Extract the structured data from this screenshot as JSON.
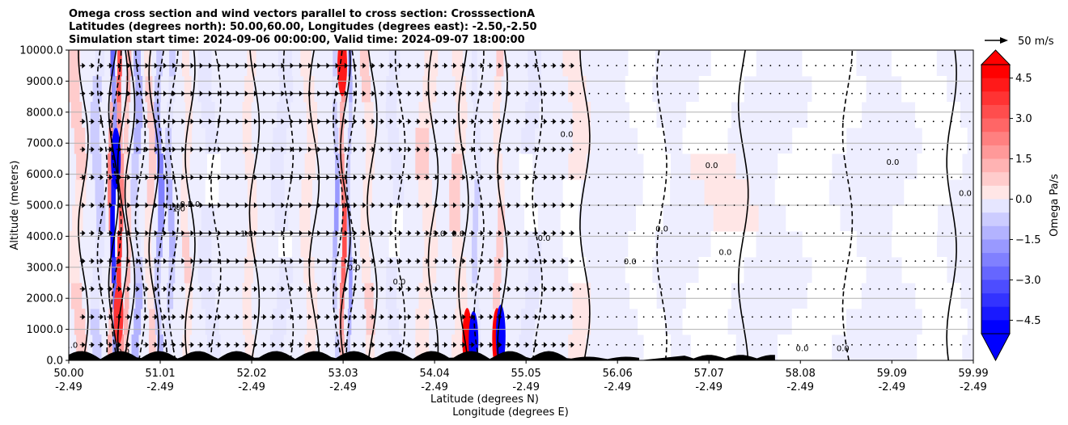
{
  "chart_data": {
    "type": "heatmap",
    "title_lines": [
      "Omega cross section and wind vectors parallel to cross section: CrosssectionA",
      "Latitudes (degrees north): 50.00,60.00, Longitudes (degrees east): -2.50,-2.50",
      "Simulation start time: 2024-09-06 00:00:00, Valid time: 2024-09-07 18:00:00"
    ],
    "ylabel": "Altitude (meters)",
    "xlabel": "Latitude (degrees N)",
    "xlabel2": "Longitude (degrees E)",
    "ylim": [
      0,
      10000
    ],
    "xlim": [
      50.0,
      59.99
    ],
    "y_ticks": [
      0,
      1000,
      2000,
      3000,
      4000,
      5000,
      6000,
      7000,
      8000,
      9000,
      10000
    ],
    "y_tick_labels": [
      "0.0",
      "1000.0",
      "2000.0",
      "3000.0",
      "4000.0",
      "5000.0",
      "6000.0",
      "7000.0",
      "8000.0",
      "9000.0",
      "10000.0"
    ],
    "x_ticks": [
      {
        "lat": 50.0,
        "lat_label": "50.00",
        "lon_label": "-2.49"
      },
      {
        "lat": 51.01,
        "lat_label": "51.01",
        "lon_label": "-2.49"
      },
      {
        "lat": 52.02,
        "lat_label": "52.02",
        "lon_label": "-2.49"
      },
      {
        "lat": 53.03,
        "lat_label": "53.03",
        "lon_label": "-2.49"
      },
      {
        "lat": 54.04,
        "lat_label": "54.04",
        "lon_label": "-2.49"
      },
      {
        "lat": 55.05,
        "lat_label": "55.05",
        "lon_label": "-2.49"
      },
      {
        "lat": 56.06,
        "lat_label": "56.06",
        "lon_label": "-2.49"
      },
      {
        "lat": 57.07,
        "lat_label": "57.07",
        "lon_label": "-2.49"
      },
      {
        "lat": 58.08,
        "lat_label": "58.08",
        "lon_label": "-2.49"
      },
      {
        "lat": 59.09,
        "lat_label": "59.09",
        "lon_label": "-2.49"
      },
      {
        "lat": 59.99,
        "lat_label": "59.99",
        "lon_label": "-2.49"
      }
    ],
    "grid": "horizontal",
    "colorbar": {
      "label": "Omega Pa/s",
      "vmin": -5.0,
      "vmax": 5.0,
      "levels": 20,
      "ticks": [
        4.5,
        3.0,
        1.5,
        0.0,
        -1.5,
        -3.0,
        -4.5
      ],
      "tick_labels": [
        "4.5",
        "3.0",
        "1.5",
        "0.0",
        "−1.5",
        "−3.0",
        "−4.5"
      ],
      "colormap": "bwr",
      "extend": "both"
    },
    "quiver_key": {
      "label": "50 m/s",
      "speed": 50
    },
    "contour_labels": [
      {
        "lat": 50.03,
        "alt": 400,
        "text": "1.0"
      },
      {
        "lat": 50.6,
        "alt": 200,
        "text": "0.0"
      },
      {
        "lat": 51.15,
        "alt": 4850,
        "text": "-1.0"
      },
      {
        "lat": 51.2,
        "alt": 4800,
        "text": "-1.0"
      },
      {
        "lat": 51.3,
        "alt": 4950,
        "text": "0.0"
      },
      {
        "lat": 51.38,
        "alt": 4950,
        "text": "1.0"
      },
      {
        "lat": 51.95,
        "alt": 4000,
        "text": "-1.0"
      },
      {
        "lat": 53.15,
        "alt": 2900,
        "text": "0.0"
      },
      {
        "lat": 53.65,
        "alt": 2450,
        "text": "0.0"
      },
      {
        "lat": 54.07,
        "alt": 4000,
        "text": "-1.0"
      },
      {
        "lat": 54.3,
        "alt": 4000,
        "text": "0.0"
      },
      {
        "lat": 55.25,
        "alt": 3850,
        "text": "0.0"
      },
      {
        "lat": 55.5,
        "alt": 7200,
        "text": "0.0"
      },
      {
        "lat": 56.2,
        "alt": 3100,
        "text": "0.0"
      },
      {
        "lat": 56.55,
        "alt": 4150,
        "text": "0.0"
      },
      {
        "lat": 57.1,
        "alt": 6200,
        "text": "0.0"
      },
      {
        "lat": 57.25,
        "alt": 3400,
        "text": "0.0"
      },
      {
        "lat": 58.1,
        "alt": 300,
        "text": "0.0"
      },
      {
        "lat": 58.55,
        "alt": 300,
        "text": "0.0"
      },
      {
        "lat": 59.1,
        "alt": 6300,
        "text": "0.0"
      },
      {
        "lat": 59.9,
        "alt": 5300,
        "text": "0.0"
      }
    ],
    "omega_bands": [
      {
        "lat": 50.1,
        "width": 0.12,
        "value": 1.2
      },
      {
        "lat": 50.32,
        "width": 0.1,
        "value": -1.2
      },
      {
        "lat": 50.47,
        "width": 0.05,
        "value": 2.5
      },
      {
        "lat": 50.5,
        "width": 0.05,
        "value": -5.0
      },
      {
        "lat": 50.57,
        "width": 0.05,
        "value": 4.0
      },
      {
        "lat": 50.65,
        "width": 0.05,
        "value": 1.5
      },
      {
        "lat": 50.75,
        "width": 0.08,
        "value": -1.6
      },
      {
        "lat": 50.9,
        "width": 0.08,
        "value": 1.2
      },
      {
        "lat": 51.0,
        "width": 0.07,
        "value": -2.5
      },
      {
        "lat": 51.12,
        "width": 0.07,
        "value": -1.5
      },
      {
        "lat": 51.3,
        "width": 0.08,
        "value": 0.8
      },
      {
        "lat": 51.55,
        "width": 0.15,
        "value": -0.5
      },
      {
        "lat": 52.0,
        "width": 0.1,
        "value": 0.7
      },
      {
        "lat": 52.35,
        "width": 0.15,
        "value": -0.6
      },
      {
        "lat": 52.65,
        "width": 0.12,
        "value": 0.7
      },
      {
        "lat": 52.95,
        "width": 0.05,
        "value": -1.8
      },
      {
        "lat": 53.03,
        "width": 0.05,
        "value": 3.5
      },
      {
        "lat": 53.1,
        "width": 0.04,
        "value": -2.0
      },
      {
        "lat": 53.3,
        "width": 0.1,
        "value": 0.8
      },
      {
        "lat": 53.6,
        "width": 0.12,
        "value": -0.5
      },
      {
        "lat": 53.95,
        "width": 0.15,
        "value": 0.8
      },
      {
        "lat": 54.3,
        "width": 0.12,
        "value": 0.9
      },
      {
        "lat": 54.5,
        "width": 0.06,
        "value": -0.9
      },
      {
        "lat": 54.75,
        "width": 0.08,
        "value": 1.0
      },
      {
        "lat": 55.1,
        "width": 0.15,
        "value": -0.4
      },
      {
        "lat": 55.6,
        "width": 0.2,
        "value": 0.4
      },
      {
        "lat": 56.4,
        "width": 0.3,
        "value": -0.2
      },
      {
        "lat": 57.2,
        "width": 0.5,
        "value": 0.3
      },
      {
        "lat": 58.3,
        "width": 0.6,
        "value": -0.2
      },
      {
        "lat": 59.5,
        "width": 0.5,
        "value": 0.25
      }
    ],
    "surface_omega_spots": [
      {
        "lat": 50.55,
        "alt": 1500,
        "value": 4.2
      },
      {
        "lat": 50.52,
        "alt": 6500,
        "value": -5.0
      },
      {
        "lat": 53.02,
        "alt": 9500,
        "value": 4.5
      },
      {
        "lat": 54.4,
        "alt": 700,
        "value": 5.0
      },
      {
        "lat": 54.47,
        "alt": 600,
        "value": -5.0
      },
      {
        "lat": 54.73,
        "alt": 700,
        "value": 5.0
      },
      {
        "lat": 54.77,
        "alt": 800,
        "value": -5.0
      }
    ]
  }
}
